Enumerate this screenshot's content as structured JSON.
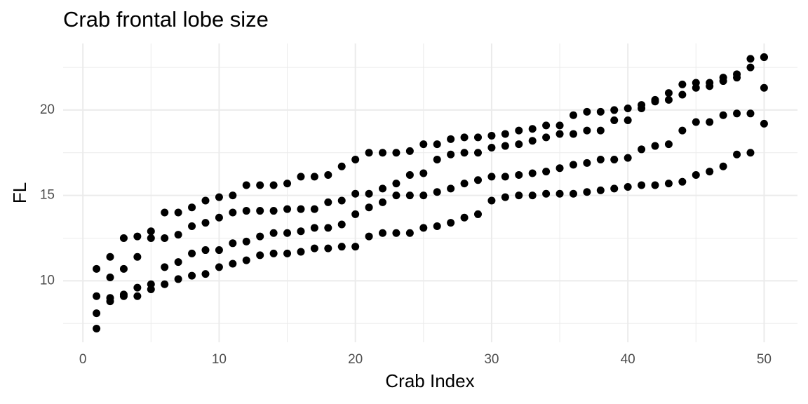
{
  "chart_data": {
    "type": "scatter",
    "title": "Crab frontal lobe size",
    "x_label": "Crab Index",
    "y_label": "FL",
    "color": "#000000",
    "grid": true,
    "xlim": [
      -1.45,
      52.45
    ],
    "ylim": [
      6.4,
      23.9
    ],
    "xticks": [
      0,
      10,
      20,
      30,
      40,
      50
    ],
    "yticks": [
      10,
      15,
      20
    ],
    "x": [
      1,
      2,
      3,
      4,
      5,
      6,
      7,
      8,
      9,
      10,
      11,
      12,
      13,
      14,
      15,
      16,
      17,
      18,
      19,
      20,
      21,
      22,
      23,
      24,
      25,
      26,
      27,
      28,
      29,
      30,
      31,
      32,
      33,
      34,
      35,
      36,
      37,
      38,
      39,
      40,
      41,
      42,
      43,
      44,
      45,
      46,
      47,
      48,
      49,
      50,
      1,
      2,
      3,
      4,
      5,
      6,
      7,
      8,
      9,
      10,
      11,
      12,
      13,
      14,
      15,
      16,
      17,
      18,
      19,
      20,
      21,
      22,
      23,
      24,
      25,
      26,
      27,
      28,
      29,
      30,
      31,
      32,
      33,
      34,
      35,
      36,
      37,
      38,
      39,
      40,
      41,
      42,
      43,
      44,
      45,
      46,
      47,
      48,
      49,
      50,
      1,
      2,
      3,
      4,
      5,
      6,
      7,
      8,
      9,
      10,
      11,
      12,
      13,
      14,
      15,
      16,
      17,
      18,
      19,
      20,
      21,
      22,
      23,
      24,
      25,
      26,
      27,
      28,
      29,
      30,
      31,
      32,
      33,
      34,
      35,
      36,
      37,
      38,
      39,
      40,
      41,
      42,
      43,
      44,
      45,
      46,
      47,
      48,
      49,
      50,
      1,
      2,
      3,
      4,
      5,
      6,
      7,
      8,
      9,
      10,
      11,
      12,
      13,
      14,
      15,
      16,
      17,
      18,
      19,
      20,
      21,
      22,
      23,
      24,
      25,
      26,
      27,
      28,
      29,
      30,
      31,
      32,
      33,
      34,
      35,
      36,
      37,
      38,
      39,
      40,
      41,
      42,
      43,
      44,
      45,
      46,
      47,
      48,
      49,
      50
    ],
    "y": [
      8.1,
      8.8,
      9.2,
      9.6,
      9.8,
      10.8,
      11.1,
      11.6,
      11.8,
      11.8,
      12.2,
      12.3,
      12.6,
      12.8,
      12.8,
      12.9,
      13.1,
      13.1,
      13.3,
      13.9,
      14.3,
      14.6,
      15.0,
      15.0,
      15.0,
      15.2,
      15.4,
      15.7,
      15.9,
      16.1,
      16.1,
      16.2,
      16.3,
      16.4,
      16.6,
      16.8,
      16.9,
      17.1,
      17.1,
      17.2,
      17.7,
      17.9,
      18.0,
      18.8,
      19.3,
      19.3,
      19.7,
      19.8,
      19.8,
      21.3,
      7.2,
      9.0,
      9.1,
      9.1,
      9.5,
      9.8,
      10.1,
      10.3,
      10.4,
      10.8,
      11.0,
      11.2,
      11.5,
      11.6,
      11.6,
      11.7,
      11.9,
      11.9,
      12.0,
      12.0,
      12.6,
      12.8,
      12.8,
      12.8,
      13.1,
      13.2,
      13.4,
      13.7,
      13.9,
      14.7,
      14.9,
      15.0,
      15.0,
      15.1,
      15.1,
      15.1,
      15.2,
      15.3,
      15.4,
      15.5,
      15.6,
      15.6,
      15.7,
      15.8,
      16.2,
      16.4,
      16.7,
      17.4,
      17.5,
      19.2,
      9.1,
      10.2,
      10.7,
      11.4,
      12.5,
      12.5,
      12.7,
      13.2,
      13.4,
      13.7,
      14.0,
      14.1,
      14.1,
      14.1,
      14.2,
      14.2,
      14.2,
      14.6,
      14.7,
      15.1,
      15.1,
      15.4,
      15.7,
      16.2,
      16.3,
      17.1,
      17.4,
      17.5,
      17.5,
      17.8,
      17.9,
      18.0,
      18.2,
      18.4,
      18.6,
      18.6,
      18.8,
      18.8,
      19.4,
      19.4,
      20.1,
      20.6,
      21.0,
      21.5,
      21.6,
      21.6,
      21.9,
      22.1,
      23.0,
      23.1,
      10.7,
      11.4,
      12.5,
      12.6,
      12.9,
      14.0,
      14.0,
      14.3,
      14.7,
      14.9,
      15.0,
      15.6,
      15.6,
      15.6,
      15.7,
      16.1,
      16.1,
      16.2,
      16.7,
      17.1,
      17.5,
      17.5,
      17.5,
      17.6,
      18.0,
      18.0,
      18.3,
      18.4,
      18.4,
      18.5,
      18.6,
      18.8,
      18.9,
      19.1,
      19.1,
      19.7,
      19.9,
      19.9,
      20.0,
      20.1,
      20.3,
      20.5,
      20.6,
      20.9,
      21.3,
      21.4,
      21.7,
      21.9,
      22.5,
      23.1
    ]
  }
}
